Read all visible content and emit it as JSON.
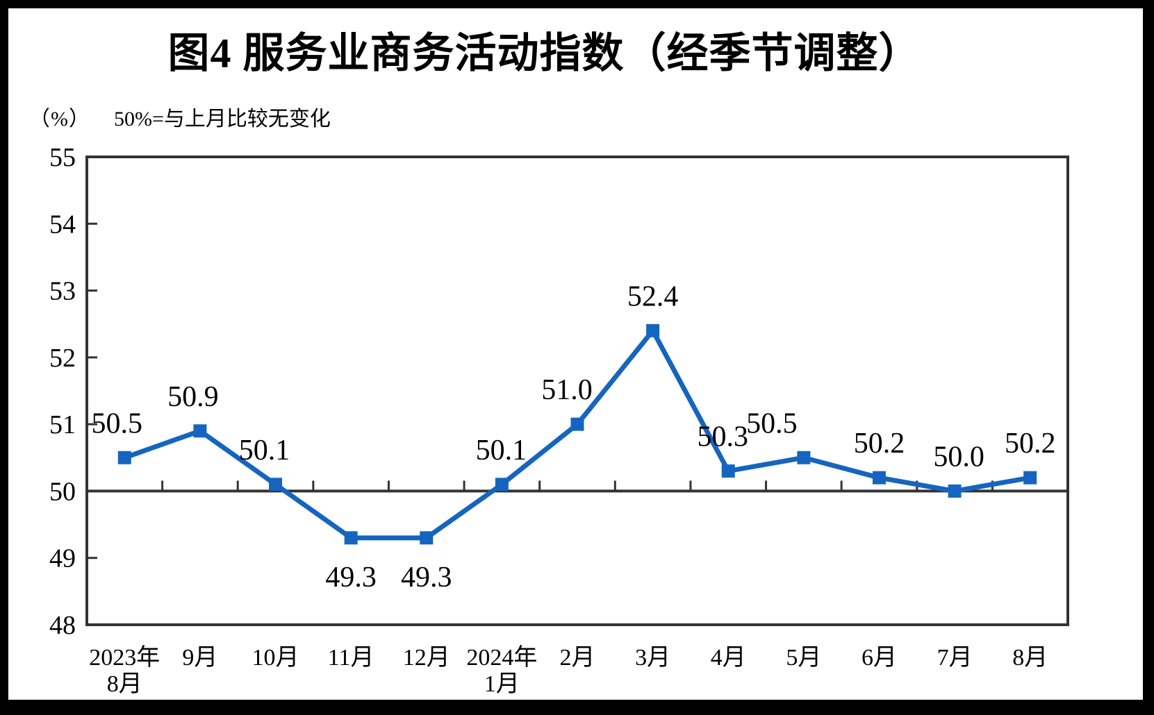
{
  "title": "图4  服务业商务活动指数（经季节调整）",
  "subtitle": {
    "unit": "（%）",
    "note": "50%=与上月比较无变化"
  },
  "chart_data": {
    "type": "line",
    "title": "图4 服务业商务活动指数（经季节调整）",
    "subtitle": "（%） 50%=与上月比较无变化",
    "categories": [
      [
        "2023年",
        "8月"
      ],
      [
        "9月"
      ],
      [
        "10月"
      ],
      [
        "11月"
      ],
      [
        "12月"
      ],
      [
        "2024年",
        "1月"
      ],
      [
        "2月"
      ],
      [
        "3月"
      ],
      [
        "4月"
      ],
      [
        "5月"
      ],
      [
        "6月"
      ],
      [
        "7月"
      ],
      [
        "8月"
      ]
    ],
    "series": [
      {
        "name": "服务业商务活动指数",
        "values": [
          50.5,
          50.9,
          50.1,
          49.3,
          49.3,
          50.1,
          51.0,
          52.4,
          50.3,
          50.5,
          50.2,
          50.0,
          50.2
        ],
        "data_labels": [
          "50.5",
          "50.9",
          "50.1",
          "49.3",
          "49.3",
          "50.1",
          "51.0",
          "52.4",
          "50.3",
          "50.5",
          "50.2",
          "50.0",
          "50.2"
        ]
      }
    ],
    "ylabel": "（%）",
    "xlabel": "",
    "ylim": [
      48,
      55
    ],
    "ytick_step": 1,
    "yticks": [
      48,
      49,
      50,
      51,
      52,
      53,
      54,
      55
    ],
    "reference_line": 50,
    "grid": false,
    "legend_position": "none",
    "colors": {
      "line": "#1565c0",
      "marker": "#1565c0",
      "axis": "#333333",
      "text": "#000000",
      "background": "#ffffff",
      "page_border": "#000000"
    }
  }
}
